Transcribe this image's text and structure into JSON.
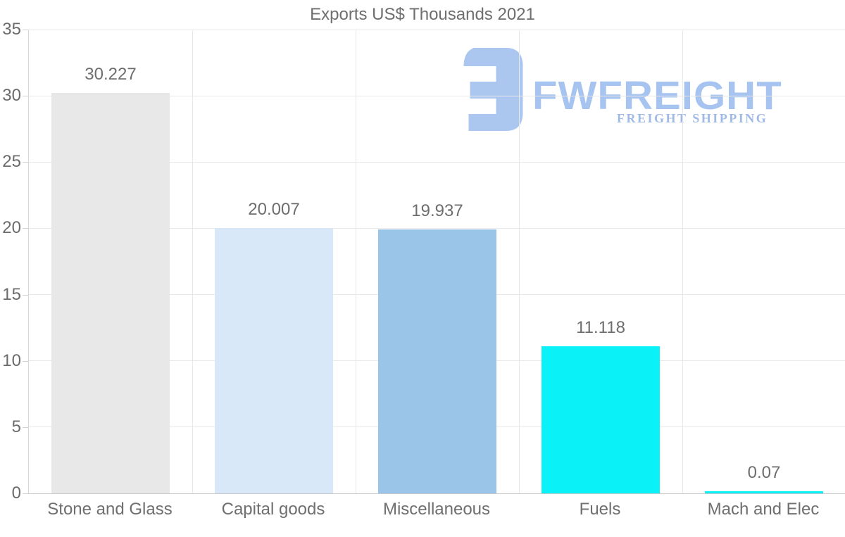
{
  "title": "Exports US$ Thousands 2021",
  "logo": {
    "brand": "FWFREIGHT",
    "tagline": "FREIGHT SHIPPING",
    "colors": {
      "mark": "#abc6ef",
      "brand_text": "#a6c4ef",
      "tagline_text": "#9fbae6"
    }
  },
  "chart_data": {
    "type": "bar",
    "title": "Exports US$ Thousands 2021",
    "categories": [
      "Stone and Glass",
      "Capital goods",
      "Miscellaneous",
      "Fuels",
      "Mach and Elec"
    ],
    "values": [
      30.227,
      20.007,
      19.937,
      11.118,
      0.07
    ],
    "value_labels": [
      "30.227",
      "20.007",
      "19.937",
      "11.118",
      "0.07"
    ],
    "bar_colors": [
      "#e8e8e9",
      "#d9e8f8",
      "#9ac4e8",
      "#0af2f8",
      "#0af2f8"
    ],
    "xlabel": "",
    "ylabel": "",
    "ylim": [
      0,
      35
    ],
    "yticks": [
      0,
      5,
      10,
      15,
      20,
      25,
      30,
      35
    ],
    "grid": true,
    "legend": false,
    "colors": {
      "text": "#6f6f6f",
      "gridline": "#e8e8e8",
      "axis_line": "#c9c9c9"
    }
  }
}
